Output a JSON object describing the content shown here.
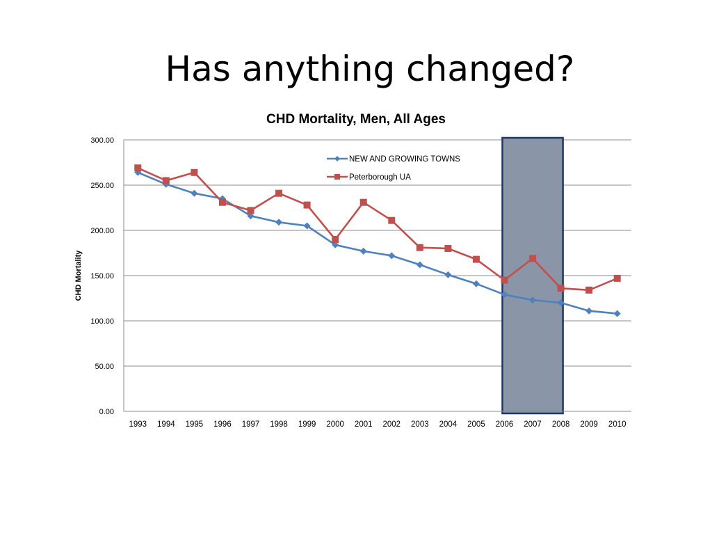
{
  "slide": {
    "title": "Has anything changed?"
  },
  "chart_data": {
    "type": "line",
    "title": "CHD Mortality, Men, All Ages",
    "xlabel": "",
    "ylabel": "CHD Mortality",
    "categories": [
      "1993",
      "1994",
      "1995",
      "1996",
      "1997",
      "1998",
      "1999",
      "2000",
      "2001",
      "2002",
      "2003",
      "2004",
      "2005",
      "2006",
      "2007",
      "2008",
      "2009",
      "2010"
    ],
    "y_ticks": [
      "0.00",
      "50.00",
      "100.00",
      "150.00",
      "200.00",
      "250.00",
      "300.00"
    ],
    "ylim": [
      0,
      300
    ],
    "grid": true,
    "legend_position": "top-center",
    "series": [
      {
        "name": "NEW AND GROWING TOWNS",
        "color": "#4F81BD",
        "marker": "diamond",
        "values": [
          264,
          251,
          241,
          235,
          216,
          209,
          205,
          184,
          177,
          172,
          162,
          151,
          141,
          129,
          123,
          120,
          111,
          108
        ]
      },
      {
        "name": "Peterborough UA",
        "color": "#C0504D",
        "marker": "square",
        "values": [
          269,
          255,
          264,
          231,
          222,
          241,
          228,
          190,
          231,
          211,
          181,
          180,
          168,
          145,
          169,
          136,
          134,
          147
        ]
      }
    ],
    "highlight": {
      "from": "2006",
      "to": "2008",
      "fill": "#8A95A8",
      "border": "#1F3864"
    }
  }
}
